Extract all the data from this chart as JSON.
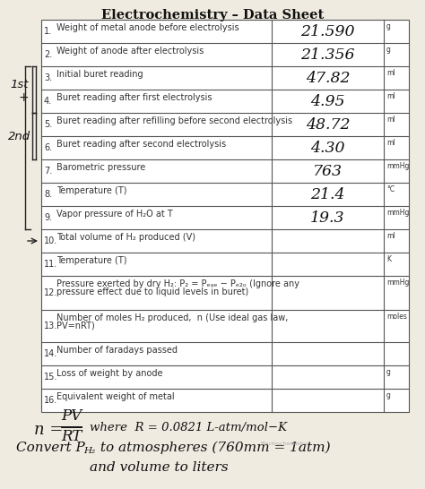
{
  "title": "Electrochemistry – Data Sheet",
  "rows": [
    {
      "num": "1.",
      "label": "Weight of metal anode before electrolysis",
      "value": "21.590",
      "unit": "g",
      "label2": ""
    },
    {
      "num": "2.",
      "label": "Weight of anode after electrolysis",
      "value": "21.356",
      "unit": "g",
      "label2": ""
    },
    {
      "num": "3.",
      "label": "Initial buret reading",
      "value": "47.82",
      "unit": "ml",
      "label2": ""
    },
    {
      "num": "4.",
      "label": "Buret reading after first electrolysis",
      "value": "4.95",
      "unit": "ml",
      "label2": ""
    },
    {
      "num": "5.",
      "label": "Buret reading after refilling before second electrolysis",
      "value": "48.72",
      "unit": "ml",
      "label2": ""
    },
    {
      "num": "6.",
      "label": "Buret reading after second electrolysis",
      "value": "4.30",
      "unit": "ml",
      "label2": ""
    },
    {
      "num": "7.",
      "label": "Barometric pressure",
      "value": "763",
      "unit": "mmHg",
      "label2": ""
    },
    {
      "num": "8.",
      "label": "Temperature (T)",
      "value": "21.4",
      "unit": "°C",
      "label2": ""
    },
    {
      "num": "9.",
      "label": "Vapor pressure of H₂O at T",
      "value": "19.3",
      "unit": "mmHg",
      "label2": ""
    },
    {
      "num": "10.",
      "label": "Total volume of H₂ produced (V)",
      "value": "",
      "unit": "ml",
      "label2": ""
    },
    {
      "num": "11.",
      "label": "Temperature (T)",
      "value": "",
      "unit": "K",
      "label2": ""
    },
    {
      "num": "12.",
      "label": "Pressure exerted by dry H₂: P₂ = Pₑₐₑ − Pₑ₂ₒ (Ignore any",
      "value": "",
      "unit": "mmHg",
      "label2": "pressure effect due to liquid levels in buret)"
    },
    {
      "num": "13.",
      "label": "Number of moles H₂ produced,  n (Use ideal gas law,",
      "value": "",
      "unit": "moles",
      "label2": "PV=nRT)"
    },
    {
      "num": "14.",
      "label": "Number of faradays passed",
      "value": "",
      "unit": "",
      "label2": ""
    },
    {
      "num": "15.",
      "label": "Loss of weight by anode",
      "value": "",
      "unit": "g",
      "label2": ""
    },
    {
      "num": "16.",
      "label": "Equivalent weight of metal",
      "value": "",
      "unit": "g",
      "label2": ""
    }
  ],
  "bg_color": "#f0ebe0",
  "table_bg": "#ffffff",
  "border_color": "#555555",
  "text_color": "#333333",
  "title_fontsize": 10.5,
  "label_fontsize": 7.0,
  "value_fontsize": 12.5
}
